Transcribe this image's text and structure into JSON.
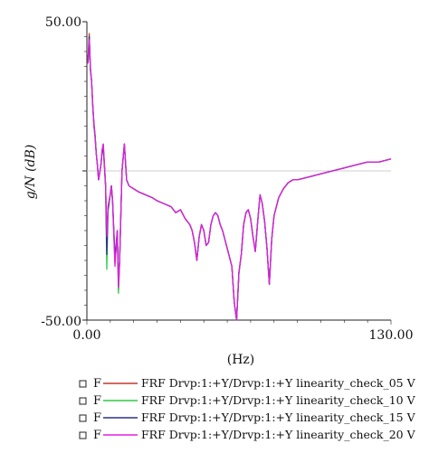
{
  "chart_data": {
    "type": "line",
    "title": "",
    "xlabel": "(Hz)",
    "ylabel": "g/N (dB)",
    "xlim": [
      0,
      130
    ],
    "ylim": [
      -50,
      50
    ],
    "x_tick_labels": [
      "0.00",
      "130.00"
    ],
    "y_tick_labels": [
      "50.00",
      "-50.00"
    ],
    "grid": false,
    "reference_line_y": 0,
    "legend": {
      "placement": "bottom",
      "entries": [
        {
          "marker": "F",
          "label": "FRF Drvp:1:+Y/Drvp:1:+Y linearity_check_05 V",
          "color": "#c0392b"
        },
        {
          "marker": "F",
          "label": "FRF Drvp:1:+Y/Drvp:1:+Y linearity_check_10 V",
          "color": "#2ecc40"
        },
        {
          "marker": "F",
          "label": "FRF Drvp:1:+Y/Drvp:1:+Y linearity_check_15 V",
          "color": "#2b2f8f"
        },
        {
          "marker": "F",
          "label": "FRF Drvp:1:+Y/Drvp:1:+Y linearity_check_20 V",
          "color": "#e020e0"
        }
      ]
    },
    "x": [
      0.5,
      1,
      1.5,
      2,
      2.5,
      3,
      3.5,
      4,
      4.5,
      5,
      6,
      6.5,
      7,
      8,
      8.5,
      9,
      10,
      10.5,
      11,
      12,
      13,
      13.5,
      14,
      15,
      16,
      17,
      18,
      20,
      22,
      25,
      28,
      30,
      33,
      36,
      38,
      40,
      42,
      44,
      45,
      46,
      47,
      48,
      49,
      50,
      51,
      52,
      53,
      54,
      55,
      56,
      57,
      58,
      60,
      62,
      63,
      64,
      65,
      66,
      67,
      68,
      69,
      70,
      71,
      72,
      73,
      74,
      75,
      76,
      77,
      78,
      79,
      80,
      82,
      84,
      86,
      88,
      90,
      95,
      100,
      105,
      110,
      115,
      120,
      125,
      130
    ],
    "series": [
      {
        "name": "FRF Drvp:1:+Y/Drvp:1:+Y linearity_check_05 V",
        "values": [
          38,
          46,
          34,
          30,
          22,
          15,
          12,
          6,
          2,
          -3,
          2,
          7,
          9,
          -5,
          -25,
          -12,
          -8,
          -5,
          -10,
          -30,
          -20,
          -40,
          -30,
          0,
          9,
          -3,
          -5,
          -6,
          -7,
          -8,
          -9,
          -10,
          -11,
          -12,
          -14,
          -13,
          -16,
          -18,
          -20,
          -24,
          -30,
          -22,
          -18,
          -20,
          -25,
          -24,
          -18,
          -15,
          -14,
          -15,
          -18,
          -20,
          -26,
          -32,
          -44,
          -55,
          -34,
          -28,
          -18,
          -14,
          -13,
          -16,
          -22,
          -27,
          -17,
          -8,
          -11,
          -17,
          -26,
          -38,
          -23,
          -15,
          -9,
          -6,
          -4,
          -3,
          -3,
          -2,
          -1,
          0,
          1,
          2,
          3,
          3,
          4
        ]
      },
      {
        "name": "FRF Drvp:1:+Y/Drvp:1:+Y linearity_check_10 V",
        "values": [
          36,
          44,
          35,
          30,
          21,
          15,
          11,
          6,
          2,
          -3,
          2,
          6,
          8,
          -6,
          -33,
          -14,
          -8,
          -5,
          -11,
          -31,
          -21,
          -41,
          -30,
          0,
          9,
          -3,
          -5,
          -6,
          -7,
          -8,
          -9,
          -10,
          -11,
          -12,
          -14,
          -13,
          -16,
          -18,
          -20,
          -24,
          -30,
          -22,
          -18,
          -20,
          -25,
          -24,
          -18,
          -15,
          -14,
          -15,
          -18,
          -20,
          -26,
          -32,
          -44,
          -55,
          -34,
          -28,
          -18,
          -14,
          -13,
          -16,
          -22,
          -27,
          -17,
          -8,
          -11,
          -17,
          -26,
          -38,
          -23,
          -15,
          -9,
          -6,
          -4,
          -3,
          -3,
          -2,
          -1,
          0,
          1,
          2,
          3,
          3,
          4
        ]
      },
      {
        "name": "FRF Drvp:1:+Y/Drvp:1:+Y linearity_check_15 V",
        "values": [
          37,
          45,
          34,
          30,
          22,
          16,
          12,
          6,
          2,
          -3,
          2,
          6,
          8,
          -5,
          -28,
          -13,
          -8,
          -5,
          -10,
          -29,
          -20,
          -38,
          -30,
          0,
          9,
          -3,
          -5,
          -6,
          -7,
          -8,
          -9,
          -10,
          -11,
          -12,
          -14,
          -13,
          -16,
          -18,
          -20,
          -24,
          -30,
          -22,
          -18,
          -20,
          -25,
          -24,
          -18,
          -15,
          -14,
          -15,
          -18,
          -20,
          -26,
          -32,
          -44,
          -55,
          -34,
          -28,
          -18,
          -14,
          -13,
          -16,
          -22,
          -27,
          -17,
          -8,
          -11,
          -17,
          -26,
          -38,
          -23,
          -15,
          -9,
          -6,
          -4,
          -3,
          -3,
          -2,
          -1,
          0,
          1,
          2,
          3,
          3,
          4
        ]
      },
      {
        "name": "FRF Drvp:1:+Y/Drvp:1:+Y linearity_check_20 V",
        "values": [
          36,
          44,
          34,
          30,
          22,
          15,
          12,
          6,
          2,
          -3,
          2,
          7,
          9,
          -5,
          -22,
          -12,
          -8,
          -5,
          -10,
          -32,
          -20,
          -39,
          -30,
          0,
          9,
          -3,
          -5,
          -6,
          -7,
          -8,
          -9,
          -10,
          -11,
          -12,
          -14,
          -13,
          -16,
          -18,
          -20,
          -24,
          -30,
          -22,
          -18,
          -20,
          -25,
          -24,
          -18,
          -15,
          -14,
          -15,
          -18,
          -20,
          -26,
          -32,
          -44,
          -55,
          -34,
          -28,
          -18,
          -14,
          -13,
          -16,
          -22,
          -27,
          -17,
          -8,
          -11,
          -17,
          -26,
          -38,
          -23,
          -15,
          -9,
          -6,
          -4,
          -3,
          -3,
          -2,
          -1,
          0,
          1,
          2,
          3,
          3,
          4
        ]
      }
    ]
  }
}
